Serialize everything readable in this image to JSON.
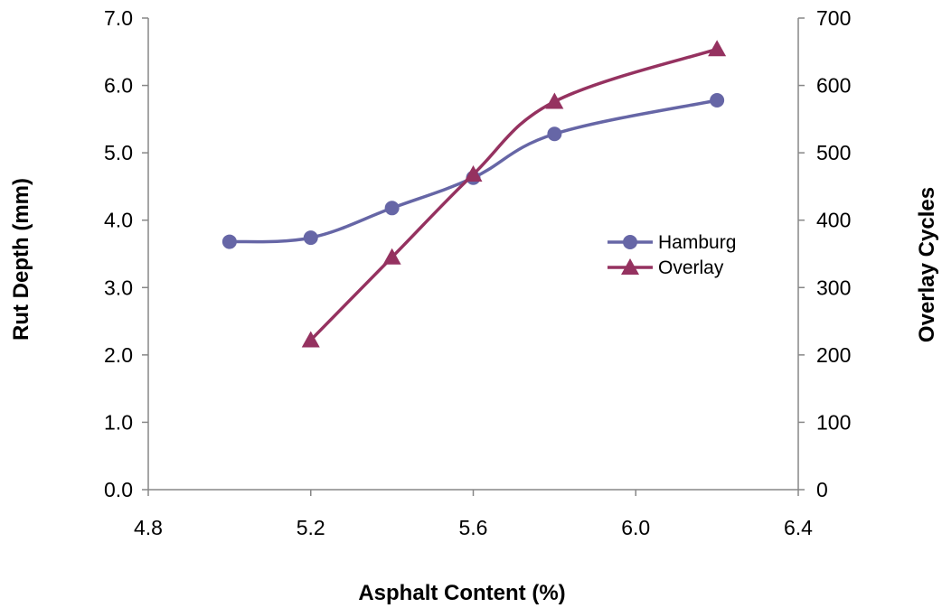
{
  "chart_data": {
    "type": "line",
    "title": "",
    "xlabel": "Asphalt Content (%)",
    "ylabel": "Rut Depth (mm)",
    "y2label": "Overlay Cycles",
    "xlim": [
      4.8,
      6.4
    ],
    "ylim": [
      0.0,
      7.0
    ],
    "y2lim": [
      0,
      700
    ],
    "xticks": [
      "4.8",
      "5.2",
      "5.6",
      "6.0",
      "6.4"
    ],
    "yticks": [
      "0.0",
      "1.0",
      "2.0",
      "3.0",
      "4.0",
      "5.0",
      "6.0",
      "7.0"
    ],
    "y2ticks": [
      "0",
      "100",
      "200",
      "300",
      "400",
      "500",
      "600",
      "700"
    ],
    "grid": false,
    "legend": "right",
    "series": [
      {
        "name": "Hamburg",
        "axis": "left",
        "marker": "circle",
        "color": "#6666a6",
        "x": [
          5.0,
          5.2,
          5.4,
          5.6,
          5.8,
          6.2
        ],
        "values": [
          3.68,
          3.74,
          4.18,
          4.63,
          5.28,
          5.78
        ]
      },
      {
        "name": "Overlay",
        "axis": "right",
        "marker": "triangle",
        "color": "#953260",
        "x": [
          5.2,
          5.4,
          5.6,
          5.8,
          6.2
        ],
        "values": [
          222,
          345,
          468,
          576,
          654
        ]
      }
    ]
  }
}
